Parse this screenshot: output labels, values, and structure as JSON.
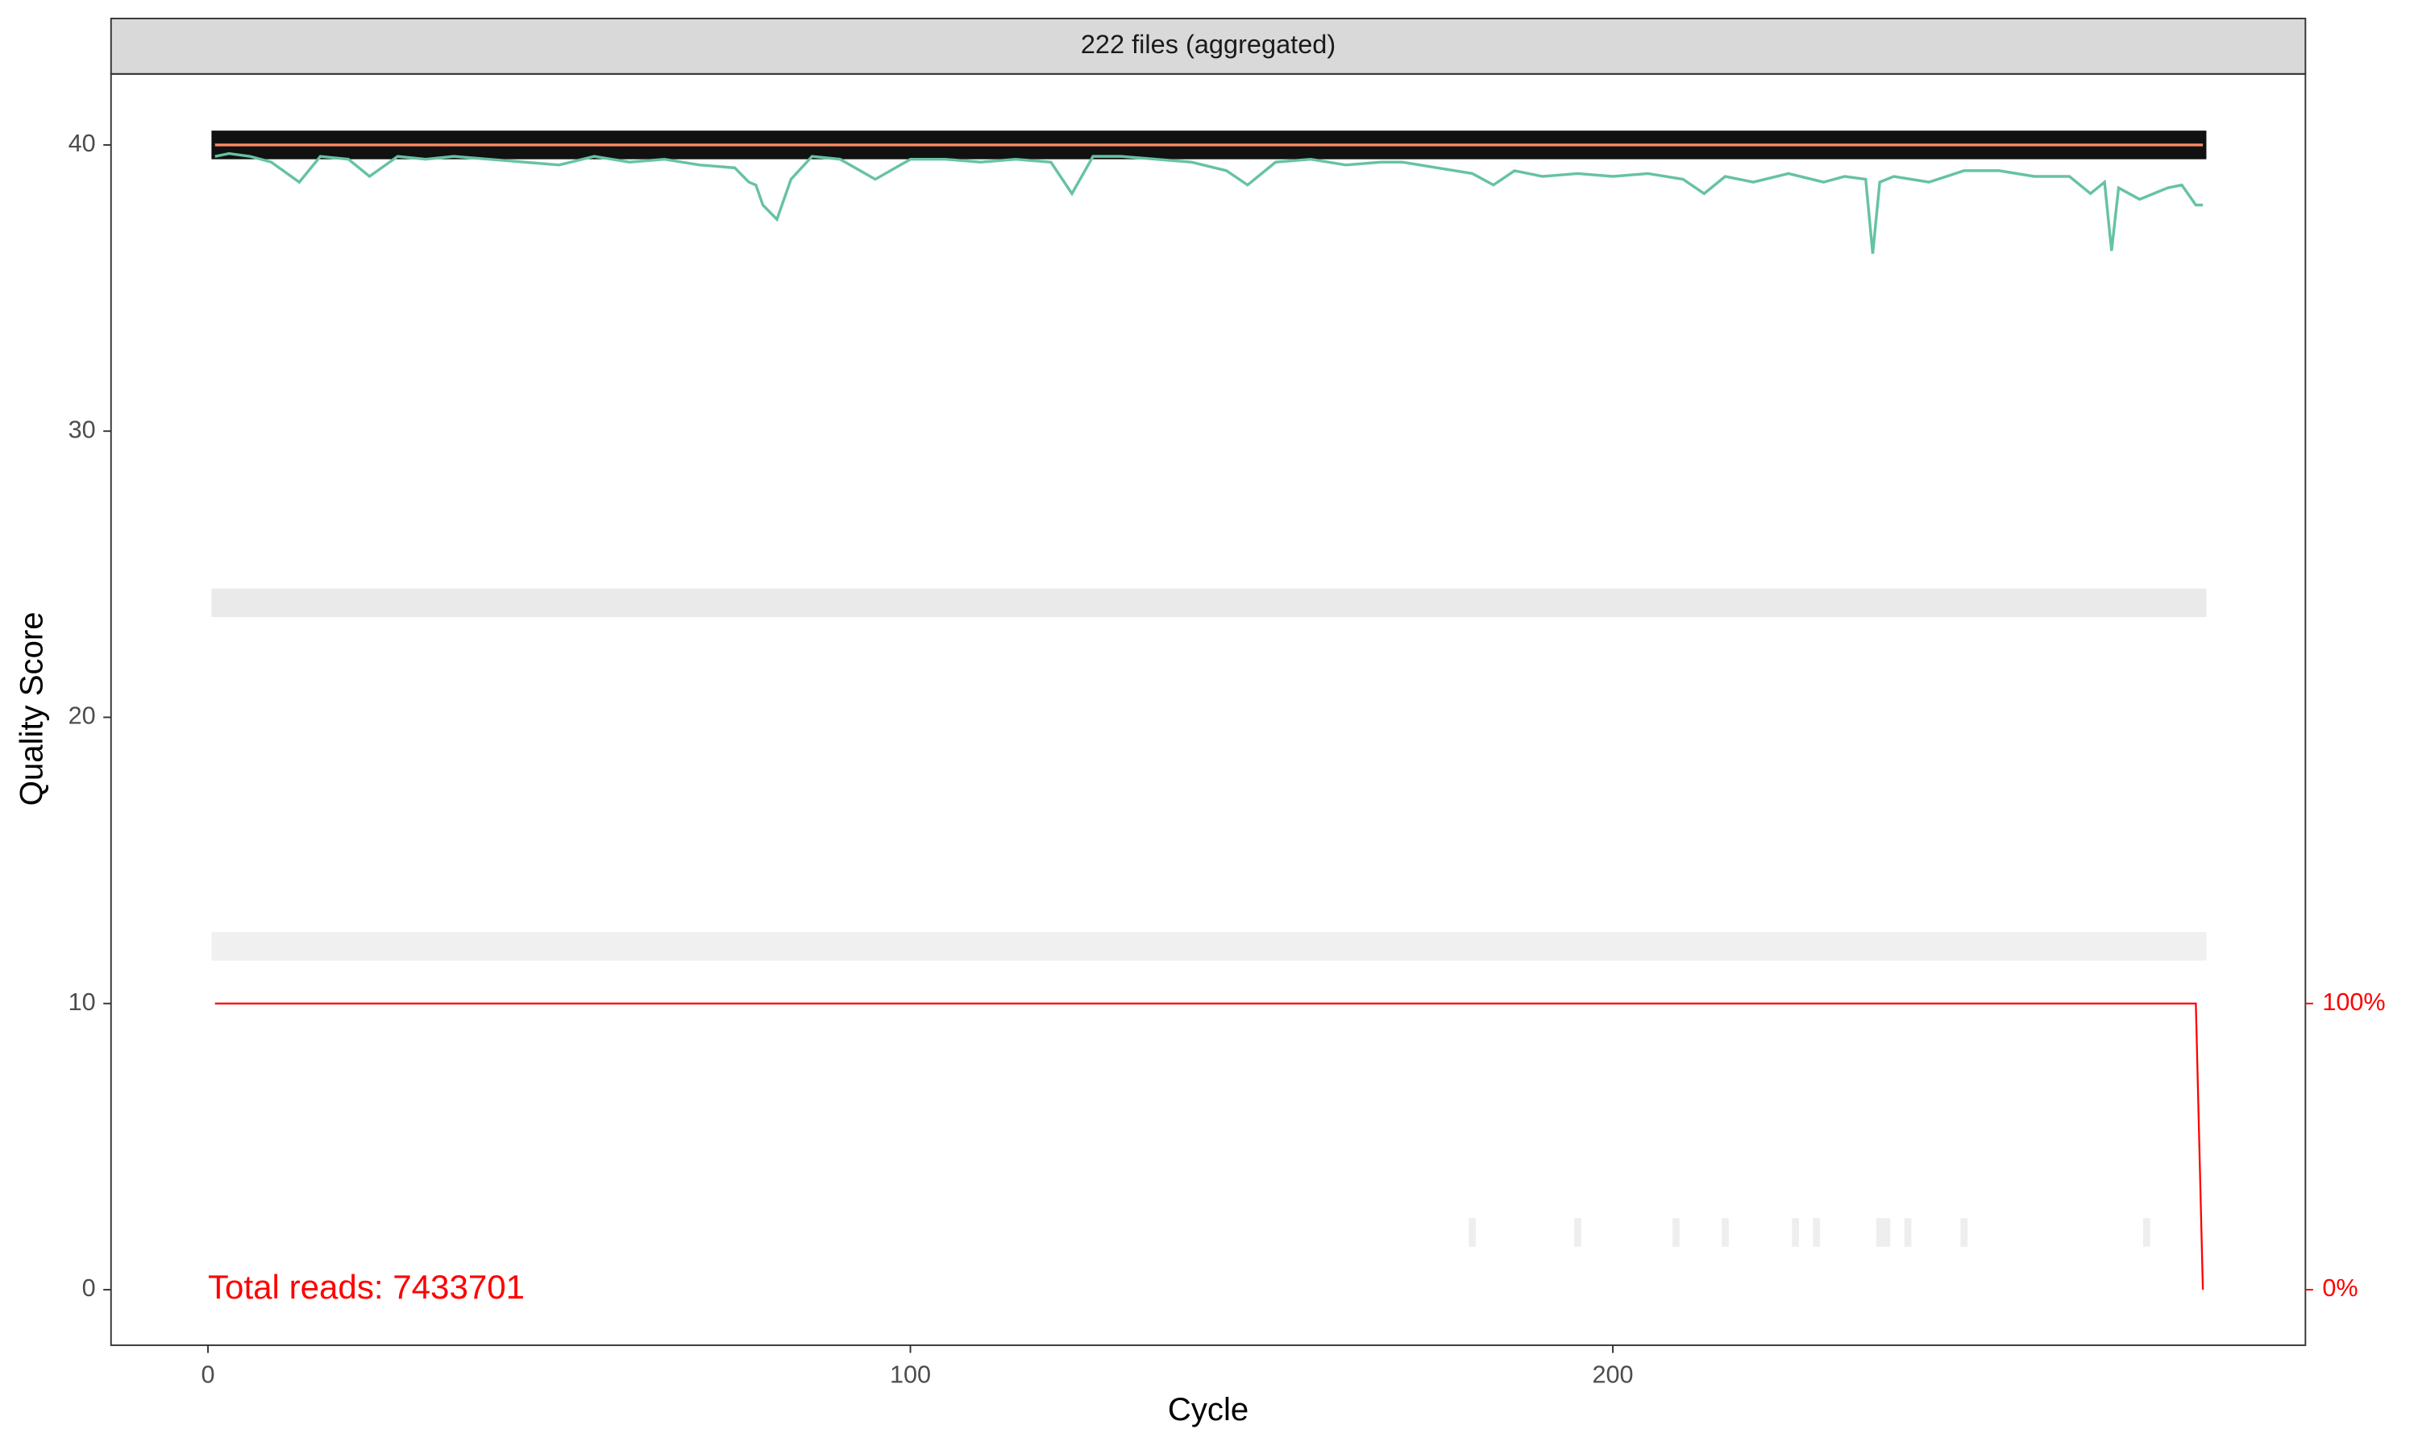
{
  "chart_data": {
    "type": "line",
    "facet_title": "222 files (aggregated)",
    "annotation": "Total reads: 7433701",
    "x_label": "Cycle",
    "y_label": "Quality Score",
    "xlim": [
      -13.8,
      298.6
    ],
    "ylim": [
      -1.94,
      42.48
    ],
    "xticks": [
      0,
      100,
      200
    ],
    "yticks": [
      0,
      10,
      20,
      30,
      40
    ],
    "y2lim": [
      -19.4,
      424.8
    ],
    "y2ticks": [
      {
        "value": 0,
        "label": "0%"
      },
      {
        "value": 100,
        "label": "100%"
      }
    ],
    "y2_color": "#ff0000",
    "heatmap": {
      "cycles": [
        1,
        284
      ],
      "rows": [
        {
          "score": 40,
          "color": "#111111"
        },
        {
          "score": 24,
          "color": "#eaeaea"
        },
        {
          "score": 12,
          "color": "#f0f0f0"
        }
      ],
      "sparse": {
        "score": 2,
        "color": "#eeeeee",
        "cycles": [
          180,
          195,
          209,
          216,
          226,
          229,
          238,
          239,
          242,
          250,
          276
        ]
      }
    },
    "series": [
      {
        "color": "#66c2a5",
        "x": [
          1,
          3,
          6,
          9,
          13,
          16,
          20,
          23,
          27,
          31,
          35,
          40,
          45,
          50,
          55,
          60,
          65,
          70,
          75,
          77,
          78,
          79,
          81,
          83,
          86,
          90,
          95,
          100,
          105,
          110,
          115,
          120,
          123,
          126,
          130,
          135,
          140,
          145,
          148,
          152,
          157,
          162,
          167,
          170,
          175,
          180,
          183,
          186,
          190,
          195,
          200,
          205,
          210,
          213,
          216,
          220,
          225,
          230,
          233,
          236,
          237,
          238,
          240,
          245,
          250,
          255,
          260,
          265,
          268,
          270,
          271,
          272,
          275,
          279,
          281,
          283,
          284
        ],
        "values": [
          39.6,
          39.7,
          39.6,
          39.4,
          38.7,
          39.6,
          39.5,
          38.9,
          39.6,
          39.5,
          39.6,
          39.5,
          39.4,
          39.3,
          39.6,
          39.4,
          39.5,
          39.3,
          39.2,
          38.7,
          38.6,
          37.9,
          37.4,
          38.8,
          39.6,
          39.5,
          38.8,
          39.5,
          39.5,
          39.4,
          39.5,
          39.4,
          38.3,
          39.6,
          39.6,
          39.5,
          39.4,
          39.1,
          38.6,
          39.4,
          39.5,
          39.3,
          39.4,
          39.4,
          39.2,
          39.0,
          38.6,
          39.1,
          38.9,
          39.0,
          38.9,
          39.0,
          38.8,
          38.3,
          38.9,
          38.7,
          39.0,
          38.7,
          38.9,
          38.8,
          36.2,
          38.7,
          38.9,
          38.7,
          39.1,
          39.1,
          38.9,
          38.9,
          38.3,
          38.7,
          36.3,
          38.5,
          38.1,
          38.5,
          38.6,
          37.9,
          37.9
        ]
      },
      {
        "color": "#fc8d62",
        "x": [
          1,
          284
        ],
        "values": [
          40,
          40
        ]
      },
      {
        "color": "#ff0000",
        "axis": "y2",
        "x": [
          1,
          283,
          284
        ],
        "values": [
          100,
          100,
          0
        ]
      }
    ]
  }
}
